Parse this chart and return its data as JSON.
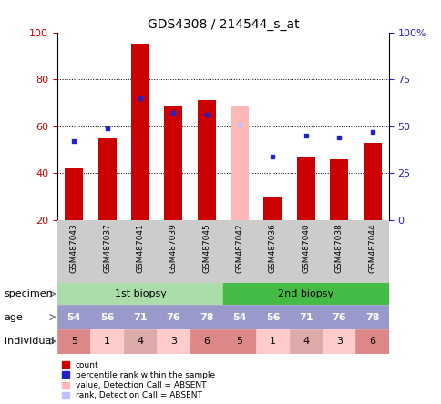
{
  "title": "GDS4308 / 214544_s_at",
  "samples": [
    "GSM487043",
    "GSM487037",
    "GSM487041",
    "GSM487039",
    "GSM487045",
    "GSM487042",
    "GSM487036",
    "GSM487040",
    "GSM487038",
    "GSM487044"
  ],
  "red_bars": [
    42,
    55,
    95,
    69,
    71,
    null,
    30,
    47,
    46,
    53
  ],
  "blue_markers": [
    42,
    49,
    65,
    57,
    56,
    null,
    34,
    45,
    44,
    47
  ],
  "pink_bars": [
    null,
    null,
    null,
    null,
    null,
    69,
    null,
    null,
    null,
    null
  ],
  "lavender_markers": [
    null,
    null,
    null,
    null,
    null,
    51,
    null,
    null,
    null,
    null
  ],
  "ages": [
    54,
    56,
    71,
    76,
    78,
    54,
    56,
    71,
    76,
    78
  ],
  "individuals": [
    5,
    1,
    4,
    3,
    6,
    5,
    1,
    4,
    3,
    6
  ],
  "ylim_left": [
    20,
    100
  ],
  "yticks_left": [
    20,
    40,
    60,
    80,
    100
  ],
  "yticks_right": [
    0,
    25,
    50,
    75,
    100
  ],
  "ytick_labels_right": [
    "0",
    "25",
    "50",
    "75",
    "100%"
  ],
  "color_red": "#cc0000",
  "color_blue": "#2222cc",
  "color_pink": "#ffb8b8",
  "color_lavender": "#c0c0ff",
  "color_1st_biopsy": "#aaddaa",
  "color_2nd_biopsy": "#44bb44",
  "color_age_bg": "#9999cc",
  "color_ind_1": "#dd8888",
  "color_ind_light": "#ffcccc",
  "color_ind_4": "#ddaaaa",
  "bar_width": 0.55,
  "marker_size": 3.5,
  "grid_color": "#555555"
}
